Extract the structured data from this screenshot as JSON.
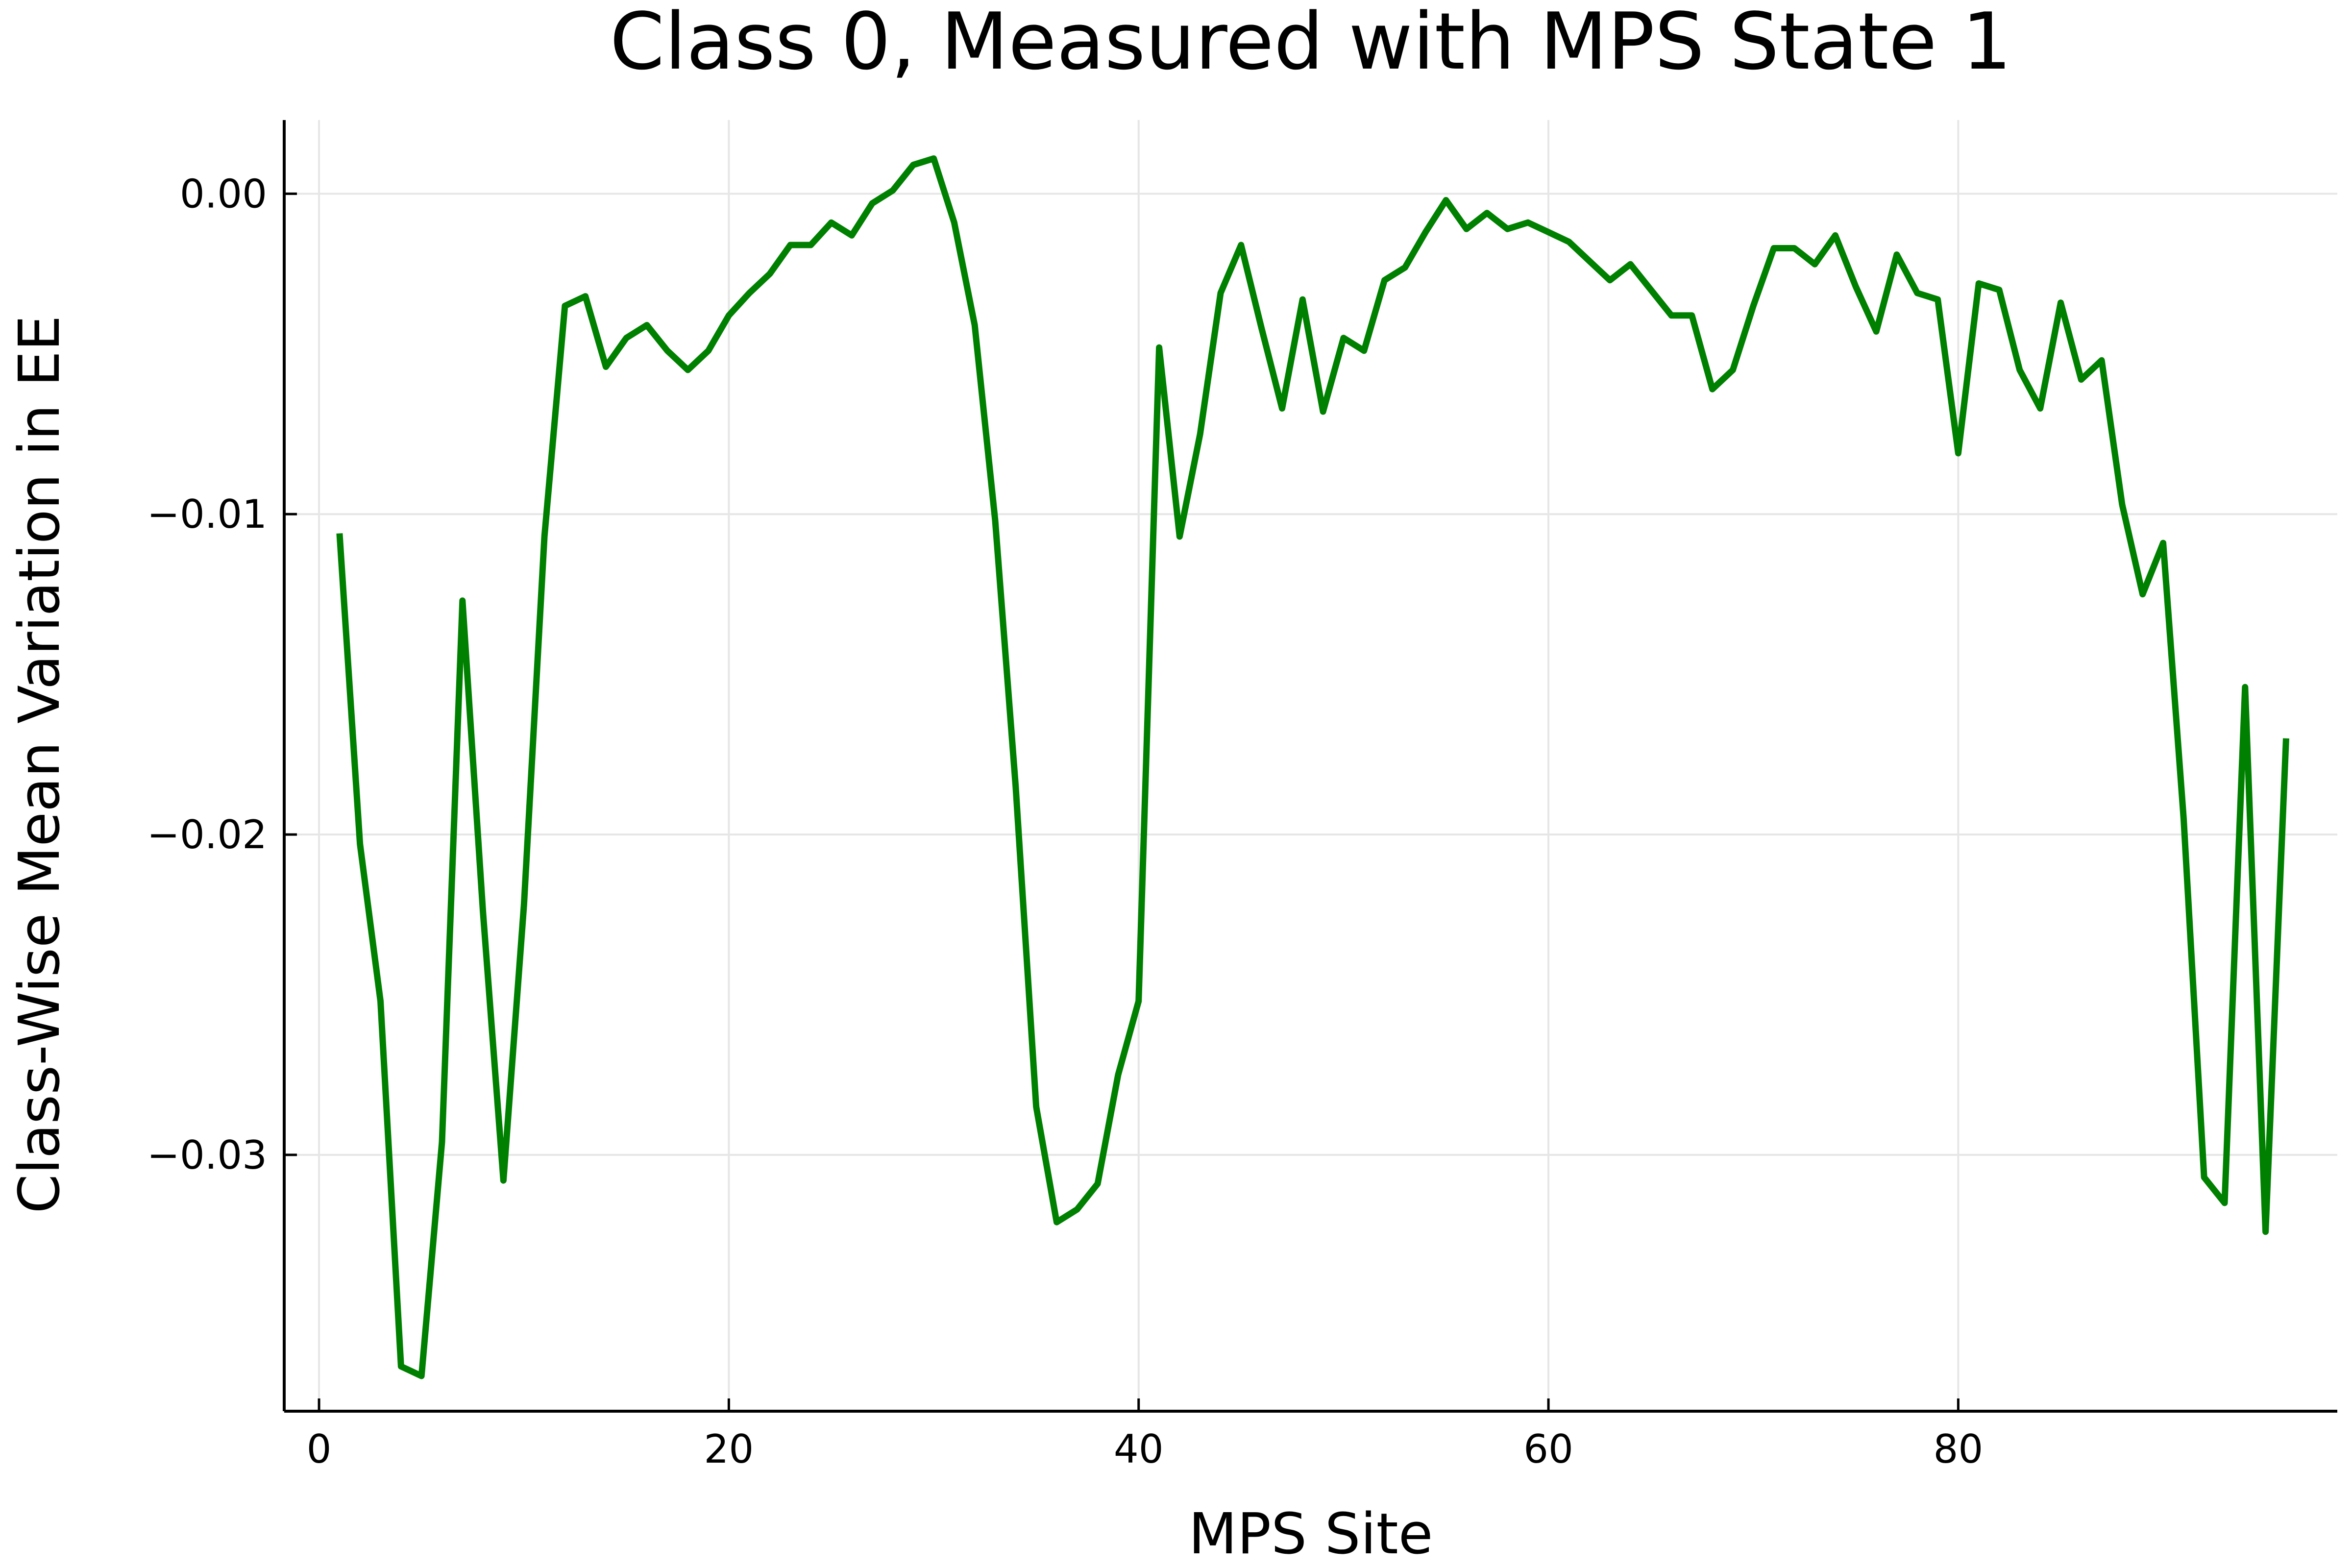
{
  "chart_data": {
    "type": "line",
    "title": "Class 0, Measured with MPS State 1",
    "xlabel": "MPS Site",
    "ylabel": "Class-Wise Mean Variation in EE",
    "xlim": [
      -1.7,
      98.5
    ],
    "ylim": [
      -0.038,
      0.0023
    ],
    "xticks": [
      0,
      20,
      40,
      60,
      80
    ],
    "xtick_labels": [
      "0",
      "20",
      "40",
      "60",
      "80"
    ],
    "yticks": [
      0.0,
      -0.01,
      -0.02,
      -0.03
    ],
    "ytick_labels": [
      "0.00",
      "−0.01",
      "−0.02",
      "−0.03"
    ],
    "grid": true,
    "legend": "none",
    "series": [
      {
        "color": "#008000",
        "x": [
          1,
          2,
          3,
          4,
          5,
          6,
          7,
          8,
          9,
          10,
          11,
          12,
          13,
          14,
          15,
          16,
          17,
          18,
          19,
          20,
          21,
          22,
          23,
          24,
          25,
          26,
          27,
          28,
          29,
          30,
          31,
          32,
          33,
          34,
          35,
          36,
          37,
          38,
          39,
          40,
          41,
          42,
          43,
          44,
          45,
          46,
          47,
          48,
          49,
          50,
          51,
          52,
          53,
          54,
          55,
          56,
          57,
          58,
          59,
          60,
          61,
          62,
          63,
          64,
          65,
          66,
          67,
          68,
          69,
          70,
          71,
          72,
          73,
          74,
          75,
          76,
          77,
          78,
          79,
          80,
          81,
          82,
          83,
          84,
          85,
          86,
          87,
          88,
          89,
          90,
          91,
          92,
          93,
          94,
          95,
          96
        ],
        "y": [
          -0.0106,
          -0.0203,
          -0.0252,
          -0.0366,
          -0.0369,
          -0.0296,
          -0.0127,
          -0.0224,
          -0.0308,
          -0.0222,
          -0.0107,
          -0.0035,
          -0.0032,
          -0.0054,
          -0.0045,
          -0.0041,
          -0.0049,
          -0.0055,
          -0.0049,
          -0.0038,
          -0.0031,
          -0.0025,
          -0.0016,
          -0.0016,
          -0.0009,
          -0.0013,
          -0.0003,
          0.0001,
          0.0009,
          0.0011,
          -0.0009,
          -0.0041,
          -0.0102,
          -0.0185,
          -0.0285,
          -0.0321,
          -0.0317,
          -0.0309,
          -0.0275,
          -0.0252,
          -0.0048,
          -0.0107,
          -0.0075,
          -0.0031,
          -0.0016,
          -0.0042,
          -0.0067,
          -0.0033,
          -0.0068,
          -0.0045,
          -0.0049,
          -0.0027,
          -0.0023,
          -0.0012,
          -0.0002,
          -0.0011,
          -0.0006,
          -0.0011,
          -0.0009,
          -0.0012,
          -0.0015,
          -0.0021,
          -0.0027,
          -0.0022,
          -0.003,
          -0.0038,
          -0.0038,
          -0.0061,
          -0.0055,
          -0.0035,
          -0.0017,
          -0.0017,
          -0.0022,
          -0.0013,
          -0.0029,
          -0.0043,
          -0.0019,
          -0.0031,
          -0.0033,
          -0.0081,
          -0.0028,
          -0.003,
          -0.0055,
          -0.0067,
          -0.0034,
          -0.0058,
          -0.0052,
          -0.0097,
          -0.0125,
          -0.0109,
          -0.0195,
          -0.0307,
          -0.0315,
          -0.0154,
          -0.0324,
          -0.017
        ]
      }
    ]
  }
}
